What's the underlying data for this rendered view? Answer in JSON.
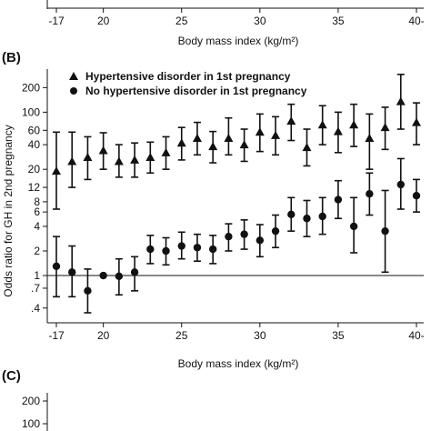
{
  "top_partial": {
    "x_ticks": [
      "-17",
      "20",
      "25",
      "30",
      "35",
      "40-"
    ],
    "xlabel": "Body mass index (kg/m²)"
  },
  "chart_data": {
    "type": "scatter",
    "panel_label": "(B)",
    "xlabel": "Body mass index (kg/m²)",
    "ylabel": "Odds ratio for GH in 2nd pregnancy",
    "y_scale": "log",
    "y_ticks": [
      ".4",
      ".7",
      "1",
      "2",
      "4",
      "6",
      "8",
      "12",
      "20",
      "40",
      "60",
      "100",
      "200"
    ],
    "x_ticks": [
      "-17",
      "20",
      "25",
      "30",
      "35",
      "40-"
    ],
    "xlim": [
      17,
      40
    ],
    "ylim": [
      0.3,
      320
    ],
    "reference_line": 1,
    "legend_position": "top-left",
    "series": [
      {
        "name": "Hypertensive disorder in 1st pregnancy",
        "marker": "triangle",
        "points": [
          {
            "x": 17,
            "y": 19,
            "lo": 6.5,
            "hi": 57
          },
          {
            "x": 18,
            "y": 25,
            "lo": 12,
            "hi": 57
          },
          {
            "x": 19,
            "y": 28,
            "lo": 15,
            "hi": 50
          },
          {
            "x": 20,
            "y": 34,
            "lo": 20,
            "hi": 56
          },
          {
            "x": 21,
            "y": 25,
            "lo": 16,
            "hi": 40
          },
          {
            "x": 22,
            "y": 26,
            "lo": 16,
            "hi": 42
          },
          {
            "x": 23,
            "y": 28,
            "lo": 18,
            "hi": 43
          },
          {
            "x": 24,
            "y": 32,
            "lo": 20,
            "hi": 50
          },
          {
            "x": 25,
            "y": 42,
            "lo": 26,
            "hi": 65
          },
          {
            "x": 26,
            "y": 48,
            "lo": 30,
            "hi": 75
          },
          {
            "x": 27,
            "y": 38,
            "lo": 24,
            "hi": 58
          },
          {
            "x": 28,
            "y": 48,
            "lo": 30,
            "hi": 85
          },
          {
            "x": 29,
            "y": 40,
            "lo": 25,
            "hi": 62
          },
          {
            "x": 30,
            "y": 57,
            "lo": 33,
            "hi": 95
          },
          {
            "x": 31,
            "y": 52,
            "lo": 30,
            "hi": 88
          },
          {
            "x": 32,
            "y": 78,
            "lo": 45,
            "hi": 125
          },
          {
            "x": 33,
            "y": 37,
            "lo": 22,
            "hi": 62
          },
          {
            "x": 34,
            "y": 70,
            "lo": 40,
            "hi": 120
          },
          {
            "x": 35,
            "y": 58,
            "lo": 32,
            "hi": 100
          },
          {
            "x": 36,
            "y": 70,
            "lo": 38,
            "hi": 125
          },
          {
            "x": 37,
            "y": 48,
            "lo": 20,
            "hi": 95
          },
          {
            "x": 38,
            "y": 65,
            "lo": 35,
            "hi": 115
          },
          {
            "x": 39,
            "y": 135,
            "lo": 62,
            "hi": 290
          },
          {
            "x": 40,
            "y": 75,
            "lo": 40,
            "hi": 130
          }
        ]
      },
      {
        "name": "No hypertensive disorder in 1st pregnancy",
        "marker": "circle",
        "points": [
          {
            "x": 17,
            "y": 1.3,
            "lo": 0.55,
            "hi": 3.0
          },
          {
            "x": 18,
            "y": 1.1,
            "lo": 0.55,
            "hi": 2.3
          },
          {
            "x": 19,
            "y": 0.65,
            "lo": 0.35,
            "hi": 1.2
          },
          {
            "x": 20,
            "y": 1.0,
            "lo": 1.0,
            "hi": 1.0
          },
          {
            "x": 21,
            "y": 0.98,
            "lo": 0.58,
            "hi": 1.6
          },
          {
            "x": 22,
            "y": 1.1,
            "lo": 0.65,
            "hi": 1.7
          },
          {
            "x": 23,
            "y": 2.1,
            "lo": 1.4,
            "hi": 3.1
          },
          {
            "x": 24,
            "y": 2.0,
            "lo": 1.35,
            "hi": 2.9
          },
          {
            "x": 25,
            "y": 2.3,
            "lo": 1.6,
            "hi": 3.4
          },
          {
            "x": 26,
            "y": 2.2,
            "lo": 1.5,
            "hi": 3.2
          },
          {
            "x": 27,
            "y": 2.1,
            "lo": 1.4,
            "hi": 3.1
          },
          {
            "x": 28,
            "y": 3.0,
            "lo": 2.0,
            "hi": 4.3
          },
          {
            "x": 29,
            "y": 3.2,
            "lo": 2.1,
            "hi": 4.8
          },
          {
            "x": 30,
            "y": 2.7,
            "lo": 1.7,
            "hi": 4.2
          },
          {
            "x": 31,
            "y": 3.5,
            "lo": 2.2,
            "hi": 5.5
          },
          {
            "x": 32,
            "y": 5.6,
            "lo": 3.5,
            "hi": 9.0
          },
          {
            "x": 33,
            "y": 5.0,
            "lo": 3.0,
            "hi": 8.3
          },
          {
            "x": 34,
            "y": 5.3,
            "lo": 3.2,
            "hi": 9.0
          },
          {
            "x": 35,
            "y": 8.5,
            "lo": 5.0,
            "hi": 14.5
          },
          {
            "x": 36,
            "y": 4.0,
            "lo": 1.9,
            "hi": 9.0
          },
          {
            "x": 37,
            "y": 10.0,
            "lo": 5.5,
            "hi": 18.0
          },
          {
            "x": 38,
            "y": 3.5,
            "lo": 1.1,
            "hi": 11.0
          },
          {
            "x": 39,
            "y": 13.0,
            "lo": 6.5,
            "hi": 27.0
          },
          {
            "x": 40,
            "y": 9.5,
            "lo": 6.0,
            "hi": 15.0
          }
        ]
      }
    ]
  },
  "bottom_partial": {
    "panel_label": "(C)",
    "y_ticks": [
      "200",
      "100"
    ]
  }
}
